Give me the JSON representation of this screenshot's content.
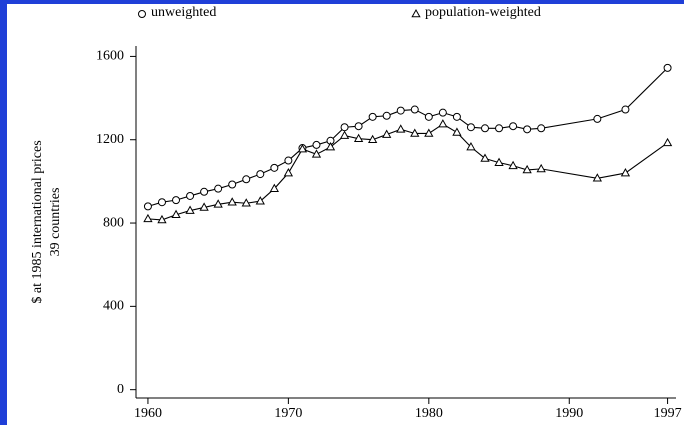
{
  "chart_data": {
    "type": "line",
    "ylabel": [
      "$ at 1985 international prices",
      "39 countries"
    ],
    "x": [
      1960,
      1961,
      1962,
      1963,
      1964,
      1965,
      1966,
      1967,
      1968,
      1969,
      1970,
      1971,
      1972,
      1973,
      1974,
      1975,
      1976,
      1977,
      1978,
      1979,
      1980,
      1981,
      1982,
      1983,
      1984,
      1985,
      1986,
      1987,
      1988,
      1992,
      1994,
      1997
    ],
    "series": [
      {
        "name": "unweighted",
        "color": "#000000",
        "marker": "circle",
        "values": [
          880,
          900,
          910,
          930,
          950,
          965,
          985,
          1010,
          1035,
          1065,
          1100,
          1160,
          1175,
          1195,
          1260,
          1265,
          1310,
          1315,
          1340,
          1345,
          1310,
          1330,
          1310,
          1260,
          1255,
          1255,
          1265,
          1250,
          1255,
          1300,
          1345,
          1545
        ]
      },
      {
        "name": "population-weighted",
        "color": "#000000",
        "marker": "triangle",
        "values": [
          820,
          815,
          840,
          860,
          875,
          890,
          900,
          895,
          905,
          965,
          1040,
          1155,
          1130,
          1165,
          1220,
          1205,
          1200,
          1225,
          1250,
          1230,
          1230,
          1275,
          1235,
          1165,
          1110,
          1090,
          1075,
          1055,
          1060,
          1015,
          1040,
          1185
        ]
      }
    ],
    "xlim": [
      1959.15,
      1997.6
    ],
    "xticks": [
      1960,
      1970,
      1980,
      1990,
      1997
    ],
    "ylim": [
      -40,
      1650
    ],
    "yticks": [
      0,
      400,
      800,
      1200,
      1600
    ]
  }
}
